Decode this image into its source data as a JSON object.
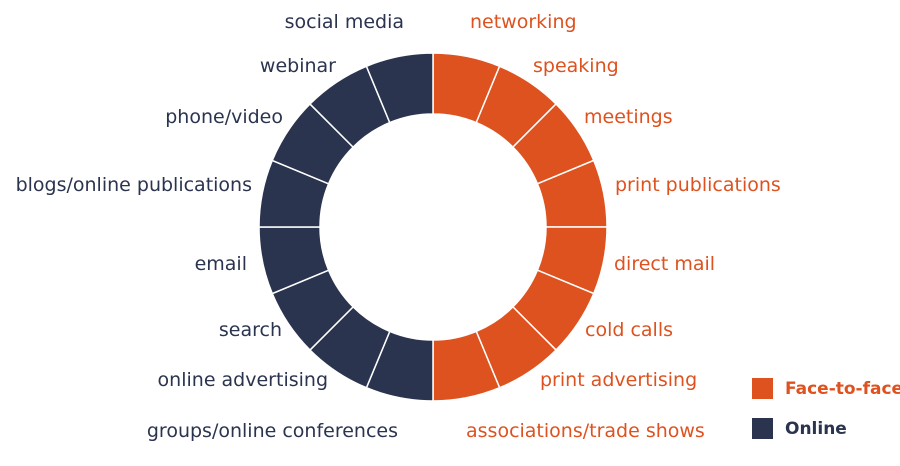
{
  "colors": {
    "face_to_face": "#DE521F",
    "online": "#2B344F"
  },
  "face_to_face_items": [
    "networking",
    "speaking",
    "meetings",
    "print publications",
    "direct mail",
    "cold calls",
    "print advertising",
    "associations/trade shows"
  ],
  "online_items": [
    "social media",
    "webinar",
    "phone/video",
    "blogs/online publications",
    "email",
    "search",
    "online advertising",
    "groups/online conferences"
  ],
  "legend": {
    "face_to_face": "Face-to-face",
    "online": "Online"
  }
}
